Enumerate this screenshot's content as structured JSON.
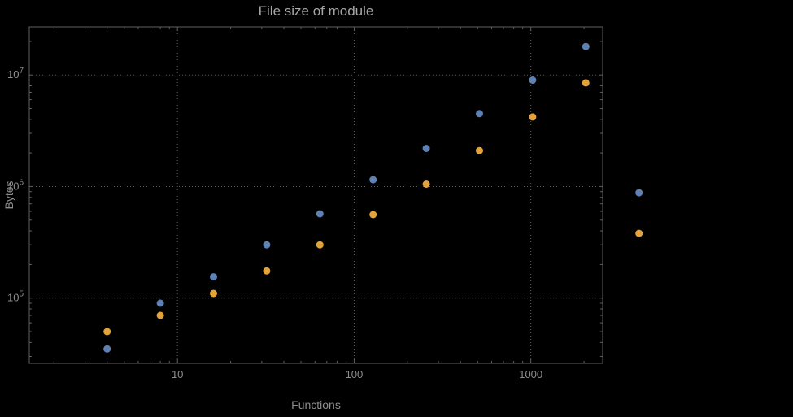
{
  "chart_data": {
    "type": "scatter",
    "title": "File size of module",
    "xlabel": "Functions",
    "ylabel": "Bytes",
    "x_scale": "log",
    "y_scale": "log",
    "grid": "dotted",
    "legend": "none",
    "x": [
      4,
      8,
      16,
      32,
      64,
      128,
      256,
      512,
      1024,
      2048,
      4096
    ],
    "series": [
      {
        "name": "blue",
        "color": "#5e81b5",
        "values": [
          35000,
          90000,
          155000,
          300000,
          570000,
          1150000,
          2200000,
          4500000,
          9000000,
          18000000,
          880000
        ]
      },
      {
        "name": "orange",
        "color": "#e3a23a",
        "values": [
          50000,
          70000,
          110000,
          175000,
          300000,
          560000,
          1050000,
          2100000,
          4200000,
          8500000,
          380000
        ]
      }
    ],
    "x_ticks": [
      10,
      100,
      1000
    ],
    "x_tick_labels": [
      "10",
      "100",
      "1000"
    ],
    "y_ticks": [
      100000,
      1000000,
      10000000
    ],
    "y_tick_exponents": [
      5,
      6,
      7
    ],
    "xlim": [
      1.45,
      2550
    ],
    "ylim": [
      26000,
      27000000
    ],
    "colors": {
      "text": "#8d8d8d",
      "frame": "#616161",
      "grid": "#5a5a5a",
      "background": "#000000"
    }
  }
}
